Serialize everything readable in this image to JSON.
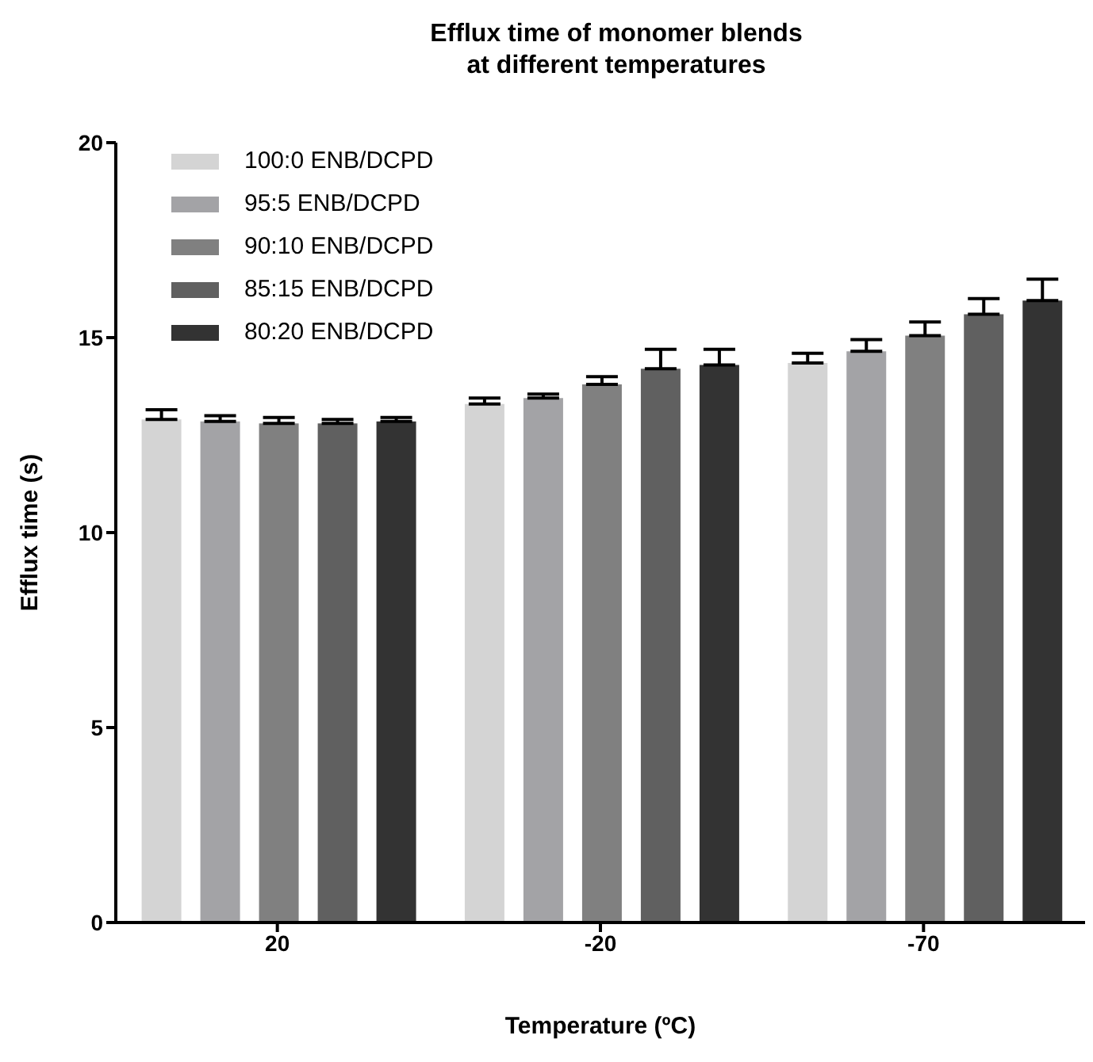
{
  "chart_data": {
    "type": "bar",
    "title": "Efflux time of monomer blends\nat different temperatures",
    "xlabel": "Temperature (ºC)",
    "ylabel": "Efflux time (s)",
    "categories": [
      "20",
      "-20",
      "-70"
    ],
    "series": [
      {
        "name": "100:0 ENB/DCPD",
        "color": "#d4d4d4",
        "values": [
          12.9,
          13.3,
          14.35
        ],
        "errors": [
          [
            12.9,
            13.15
          ],
          [
            13.3,
            13.45
          ],
          [
            14.35,
            14.6
          ]
        ]
      },
      {
        "name": "95:5 ENB/DCPD",
        "color": "#a3a3a6",
        "values": [
          12.85,
          13.45,
          14.65
        ],
        "errors": [
          [
            12.85,
            13.0
          ],
          [
            13.45,
            13.55
          ],
          [
            14.65,
            14.95
          ]
        ]
      },
      {
        "name": "90:10 ENB/DCPD",
        "color": "#808080",
        "values": [
          12.8,
          13.8,
          15.05
        ],
        "errors": [
          [
            12.8,
            12.95
          ],
          [
            13.8,
            14.0
          ],
          [
            15.05,
            15.4
          ]
        ]
      },
      {
        "name": "85:15 ENB/DCPD",
        "color": "#606060",
        "values": [
          12.8,
          14.2,
          15.6
        ],
        "errors": [
          [
            12.8,
            12.9
          ],
          [
            14.2,
            14.7
          ],
          [
            15.6,
            16.0
          ]
        ]
      },
      {
        "name": "80:20 ENB/DCPD",
        "color": "#333333",
        "values": [
          12.85,
          14.3,
          15.95
        ],
        "errors": [
          [
            12.85,
            12.95
          ],
          [
            14.3,
            14.7
          ],
          [
            15.95,
            16.5
          ]
        ]
      }
    ],
    "ylim": [
      0,
      20
    ],
    "yticks": [
      0,
      5,
      10,
      15,
      20
    ],
    "grid": false,
    "legend": "top left"
  }
}
